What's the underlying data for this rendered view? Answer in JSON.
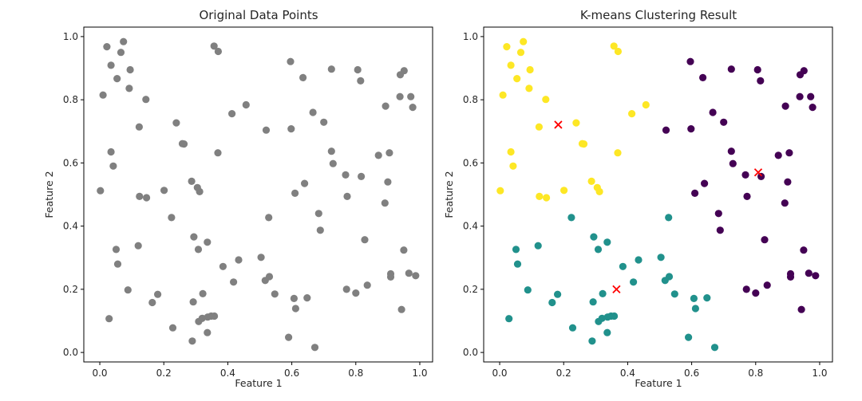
{
  "chart_data": [
    {
      "type": "scatter",
      "title": "Original Data Points",
      "xlabel": "Feature 1",
      "ylabel": "Feature 2",
      "xlim": [
        -0.05,
        1.04
      ],
      "ylim": [
        -0.03,
        1.03
      ],
      "xticks": [
        "0.0",
        "0.2",
        "0.4",
        "0.6",
        "0.8",
        "1.0"
      ],
      "yticks": [
        "0.0",
        "0.2",
        "0.4",
        "0.6",
        "0.8",
        "1.0"
      ],
      "grid": false,
      "point_color": "#808080",
      "points": [
        [
          0.022,
          0.968
        ],
        [
          0.074,
          0.984
        ],
        [
          0.066,
          0.95
        ],
        [
          0.035,
          0.909
        ],
        [
          0.095,
          0.895
        ],
        [
          0.054,
          0.867
        ],
        [
          0.092,
          0.836
        ],
        [
          0.01,
          0.815
        ],
        [
          0.144,
          0.801
        ],
        [
          0.123,
          0.714
        ],
        [
          0.035,
          0.635
        ],
        [
          0.042,
          0.59
        ],
        [
          0.002,
          0.512
        ],
        [
          0.357,
          0.97
        ],
        [
          0.37,
          0.953
        ],
        [
          0.457,
          0.784
        ],
        [
          0.413,
          0.756
        ],
        [
          0.239,
          0.727
        ],
        [
          0.258,
          0.661
        ],
        [
          0.263,
          0.66
        ],
        [
          0.369,
          0.632
        ],
        [
          0.287,
          0.542
        ],
        [
          0.305,
          0.522
        ],
        [
          0.312,
          0.509
        ],
        [
          0.201,
          0.513
        ],
        [
          0.124,
          0.494
        ],
        [
          0.146,
          0.49
        ],
        [
          0.596,
          0.921
        ],
        [
          0.724,
          0.897
        ],
        [
          0.806,
          0.895
        ],
        [
          0.815,
          0.86
        ],
        [
          0.635,
          0.87
        ],
        [
          0.951,
          0.892
        ],
        [
          0.939,
          0.879
        ],
        [
          0.938,
          0.81
        ],
        [
          0.972,
          0.81
        ],
        [
          0.978,
          0.776
        ],
        [
          0.893,
          0.78
        ],
        [
          0.666,
          0.76
        ],
        [
          0.7,
          0.729
        ],
        [
          0.52,
          0.704
        ],
        [
          0.598,
          0.708
        ],
        [
          0.724,
          0.637
        ],
        [
          0.871,
          0.624
        ],
        [
          0.905,
          0.632
        ],
        [
          0.729,
          0.598
        ],
        [
          0.768,
          0.562
        ],
        [
          0.817,
          0.557
        ],
        [
          0.9,
          0.54
        ],
        [
          0.64,
          0.535
        ],
        [
          0.61,
          0.504
        ],
        [
          0.773,
          0.494
        ],
        [
          0.891,
          0.473
        ],
        [
          0.684,
          0.44
        ],
        [
          0.689,
          0.387
        ],
        [
          0.224,
          0.427
        ],
        [
          0.528,
          0.427
        ],
        [
          0.294,
          0.366
        ],
        [
          0.828,
          0.357
        ],
        [
          0.336,
          0.349
        ],
        [
          0.12,
          0.338
        ],
        [
          0.051,
          0.326
        ],
        [
          0.308,
          0.326
        ],
        [
          0.95,
          0.324
        ],
        [
          0.504,
          0.301
        ],
        [
          0.434,
          0.293
        ],
        [
          0.056,
          0.28
        ],
        [
          0.385,
          0.272
        ],
        [
          0.987,
          0.243
        ],
        [
          0.966,
          0.251
        ],
        [
          0.909,
          0.249
        ],
        [
          0.909,
          0.239
        ],
        [
          0.53,
          0.24
        ],
        [
          0.517,
          0.228
        ],
        [
          0.418,
          0.223
        ],
        [
          0.836,
          0.213
        ],
        [
          0.088,
          0.198
        ],
        [
          0.771,
          0.2
        ],
        [
          0.8,
          0.188
        ],
        [
          0.547,
          0.185
        ],
        [
          0.322,
          0.186
        ],
        [
          0.181,
          0.184
        ],
        [
          0.607,
          0.171
        ],
        [
          0.648,
          0.173
        ],
        [
          0.164,
          0.158
        ],
        [
          0.292,
          0.16
        ],
        [
          0.612,
          0.139
        ],
        [
          0.943,
          0.136
        ],
        [
          0.32,
          0.108
        ],
        [
          0.348,
          0.115
        ],
        [
          0.337,
          0.112
        ],
        [
          0.358,
          0.115
        ],
        [
          0.029,
          0.107
        ],
        [
          0.309,
          0.098
        ],
        [
          0.228,
          0.078
        ],
        [
          0.336,
          0.063
        ],
        [
          0.59,
          0.048
        ],
        [
          0.289,
          0.036
        ],
        [
          0.672,
          0.016
        ]
      ]
    },
    {
      "type": "scatter",
      "title": "K-means Clustering Result",
      "xlabel": "Feature 1",
      "ylabel": "Feature 2",
      "xlim": [
        -0.05,
        1.04
      ],
      "ylim": [
        -0.03,
        1.03
      ],
      "xticks": [
        "0.0",
        "0.2",
        "0.4",
        "0.6",
        "0.8",
        "1.0"
      ],
      "yticks": [
        "0.0",
        "0.2",
        "0.4",
        "0.6",
        "0.8",
        "1.0"
      ],
      "grid": false,
      "clusters": [
        {
          "color": "#fde725",
          "points": [
            [
              0.022,
              0.968
            ],
            [
              0.074,
              0.984
            ],
            [
              0.066,
              0.95
            ],
            [
              0.035,
              0.909
            ],
            [
              0.095,
              0.895
            ],
            [
              0.054,
              0.867
            ],
            [
              0.092,
              0.836
            ],
            [
              0.01,
              0.815
            ],
            [
              0.144,
              0.801
            ],
            [
              0.123,
              0.714
            ],
            [
              0.035,
              0.635
            ],
            [
              0.042,
              0.59
            ],
            [
              0.002,
              0.512
            ],
            [
              0.357,
              0.97
            ],
            [
              0.37,
              0.953
            ],
            [
              0.457,
              0.784
            ],
            [
              0.413,
              0.756
            ],
            [
              0.239,
              0.727
            ],
            [
              0.258,
              0.661
            ],
            [
              0.263,
              0.66
            ],
            [
              0.369,
              0.632
            ],
            [
              0.287,
              0.542
            ],
            [
              0.305,
              0.522
            ],
            [
              0.312,
              0.509
            ],
            [
              0.201,
              0.513
            ],
            [
              0.124,
              0.494
            ],
            [
              0.146,
              0.49
            ]
          ]
        },
        {
          "color": "#440154",
          "points": [
            [
              0.596,
              0.921
            ],
            [
              0.724,
              0.897
            ],
            [
              0.806,
              0.895
            ],
            [
              0.815,
              0.86
            ],
            [
              0.635,
              0.87
            ],
            [
              0.951,
              0.892
            ],
            [
              0.939,
              0.879
            ],
            [
              0.938,
              0.81
            ],
            [
              0.972,
              0.81
            ],
            [
              0.978,
              0.776
            ],
            [
              0.893,
              0.78
            ],
            [
              0.666,
              0.76
            ],
            [
              0.7,
              0.729
            ],
            [
              0.52,
              0.704
            ],
            [
              0.598,
              0.708
            ],
            [
              0.724,
              0.637
            ],
            [
              0.871,
              0.624
            ],
            [
              0.905,
              0.632
            ],
            [
              0.729,
              0.598
            ],
            [
              0.768,
              0.562
            ],
            [
              0.817,
              0.557
            ],
            [
              0.9,
              0.54
            ],
            [
              0.64,
              0.535
            ],
            [
              0.61,
              0.504
            ],
            [
              0.773,
              0.494
            ],
            [
              0.891,
              0.473
            ],
            [
              0.684,
              0.44
            ],
            [
              0.689,
              0.387
            ],
            [
              0.828,
              0.357
            ],
            [
              0.95,
              0.324
            ],
            [
              0.987,
              0.243
            ],
            [
              0.966,
              0.251
            ],
            [
              0.909,
              0.249
            ],
            [
              0.909,
              0.239
            ],
            [
              0.836,
              0.213
            ],
            [
              0.771,
              0.2
            ],
            [
              0.8,
              0.188
            ],
            [
              0.943,
              0.136
            ]
          ]
        },
        {
          "color": "#21918c",
          "points": [
            [
              0.224,
              0.427
            ],
            [
              0.528,
              0.427
            ],
            [
              0.294,
              0.366
            ],
            [
              0.336,
              0.349
            ],
            [
              0.12,
              0.338
            ],
            [
              0.051,
              0.326
            ],
            [
              0.308,
              0.326
            ],
            [
              0.504,
              0.301
            ],
            [
              0.434,
              0.293
            ],
            [
              0.056,
              0.28
            ],
            [
              0.385,
              0.272
            ],
            [
              0.53,
              0.24
            ],
            [
              0.517,
              0.228
            ],
            [
              0.418,
              0.223
            ],
            [
              0.088,
              0.198
            ],
            [
              0.547,
              0.185
            ],
            [
              0.322,
              0.186
            ],
            [
              0.181,
              0.184
            ],
            [
              0.607,
              0.171
            ],
            [
              0.648,
              0.173
            ],
            [
              0.164,
              0.158
            ],
            [
              0.292,
              0.16
            ],
            [
              0.612,
              0.139
            ],
            [
              0.32,
              0.108
            ],
            [
              0.348,
              0.115
            ],
            [
              0.337,
              0.112
            ],
            [
              0.358,
              0.115
            ],
            [
              0.029,
              0.107
            ],
            [
              0.309,
              0.098
            ],
            [
              0.228,
              0.078
            ],
            [
              0.336,
              0.063
            ],
            [
              0.59,
              0.048
            ],
            [
              0.289,
              0.036
            ],
            [
              0.672,
              0.016
            ]
          ]
        }
      ],
      "centroids": {
        "color": "#ff0000",
        "marker": "x",
        "points": [
          [
            0.183,
            0.721
          ],
          [
            0.808,
            0.57
          ],
          [
            0.365,
            0.2
          ]
        ]
      }
    }
  ]
}
